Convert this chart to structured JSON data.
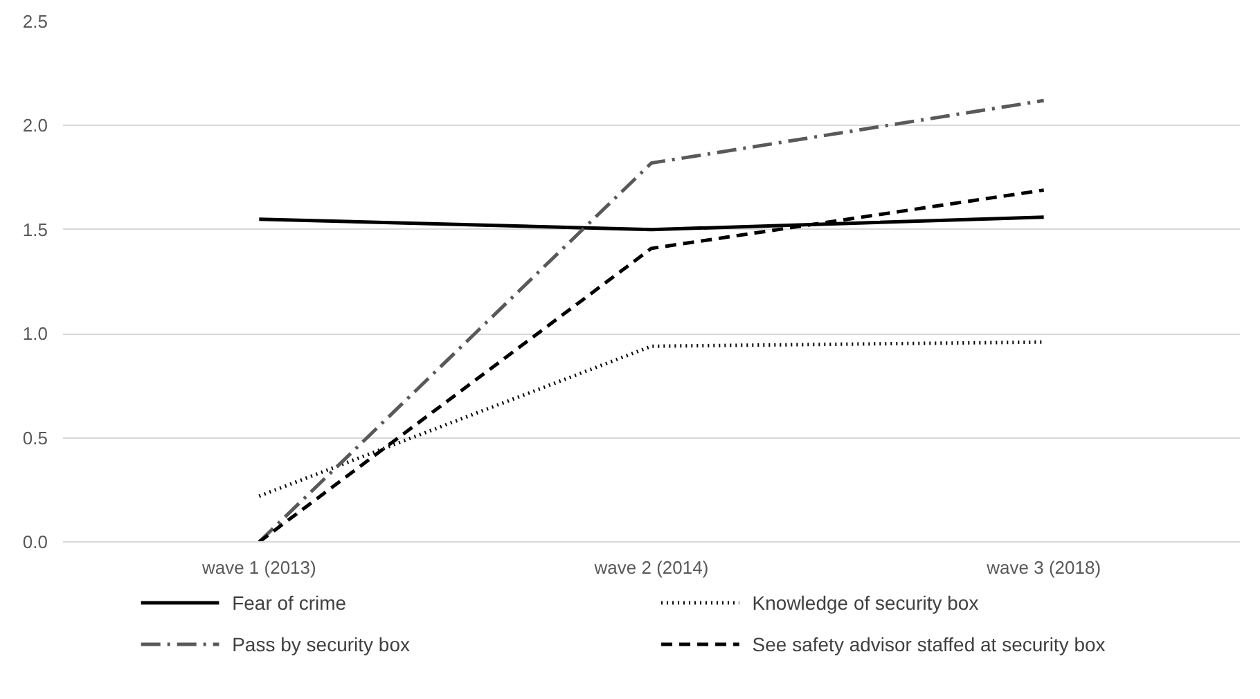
{
  "chart_data": {
    "type": "line",
    "categories": [
      "wave 1 (2013)",
      "wave 2 (2014)",
      "wave 3 (2018)"
    ],
    "ylim": [
      0,
      2.5
    ],
    "yticks": [
      {
        "value": 0,
        "label": "0.0"
      },
      {
        "value": 0.5,
        "label": "0.5"
      },
      {
        "value": 1,
        "label": "1.0"
      },
      {
        "value": 1.5,
        "label": "1.5"
      },
      {
        "value": 2,
        "label": "2.0"
      },
      {
        "value": 2.5,
        "label": "2.5"
      }
    ],
    "grid": "y",
    "legend": "bottom",
    "marker": "none",
    "series": [
      {
        "name": "Fear of crime",
        "color": "#000000",
        "line_style": "solid",
        "values": [
          1.55,
          1.5,
          1.56
        ]
      },
      {
        "name": "Knowledge of security box",
        "color": "#000000",
        "line_style": "dotted",
        "values": [
          0.22,
          0.94,
          0.96
        ]
      },
      {
        "name": "Pass by security box",
        "color": "#595959",
        "line_style": "dashdot",
        "values": [
          0,
          1.82,
          2.12
        ]
      },
      {
        "name": "See safety advisor staffed at security box",
        "color": "#000000",
        "line_style": "dashed",
        "values": [
          0,
          1.41,
          1.69
        ]
      }
    ]
  }
}
